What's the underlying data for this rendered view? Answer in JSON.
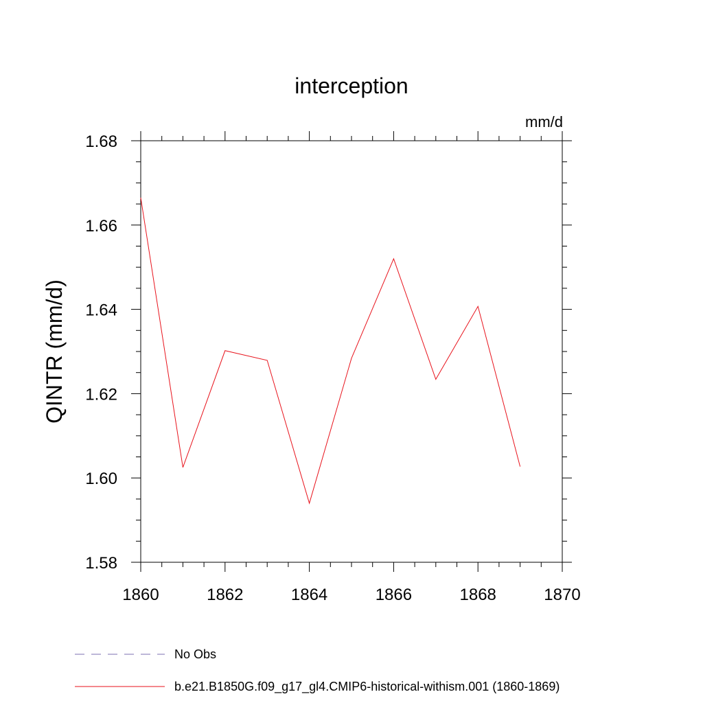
{
  "chart_data": {
    "type": "line",
    "title": "interception",
    "units": "mm/d",
    "ylabel": "QINTR  (mm/d)",
    "xlabel": "",
    "xlim": [
      1860,
      1870
    ],
    "ylim": [
      1.58,
      1.68
    ],
    "x_ticks": [
      1860,
      1862,
      1864,
      1866,
      1868,
      1870
    ],
    "x_tick_labels": [
      "1860",
      "1862",
      "1864",
      "1866",
      "1868",
      "1870"
    ],
    "y_ticks": [
      1.58,
      1.6,
      1.62,
      1.64,
      1.66,
      1.68
    ],
    "y_tick_labels": [
      "1.58",
      "1.60",
      "1.62",
      "1.64",
      "1.66",
      "1.68"
    ],
    "grid": false,
    "legend_position": "bottom",
    "series": [
      {
        "name": "No Obs",
        "style": "dashed",
        "color": "#7b6fb0",
        "x": [],
        "values": []
      },
      {
        "name": "b.e21.B1850G.f09_g17_gl4.CMIP6-historical-withism.001 (1860-1869)",
        "style": "solid",
        "color": "#e8121b",
        "x": [
          1860,
          1861,
          1862,
          1863,
          1864,
          1865,
          1866,
          1867,
          1868,
          1869
        ],
        "values": [
          1.6665,
          1.6025,
          1.6302,
          1.6279,
          1.594,
          1.6284,
          1.652,
          1.6234,
          1.6407,
          1.6027
        ]
      }
    ]
  }
}
